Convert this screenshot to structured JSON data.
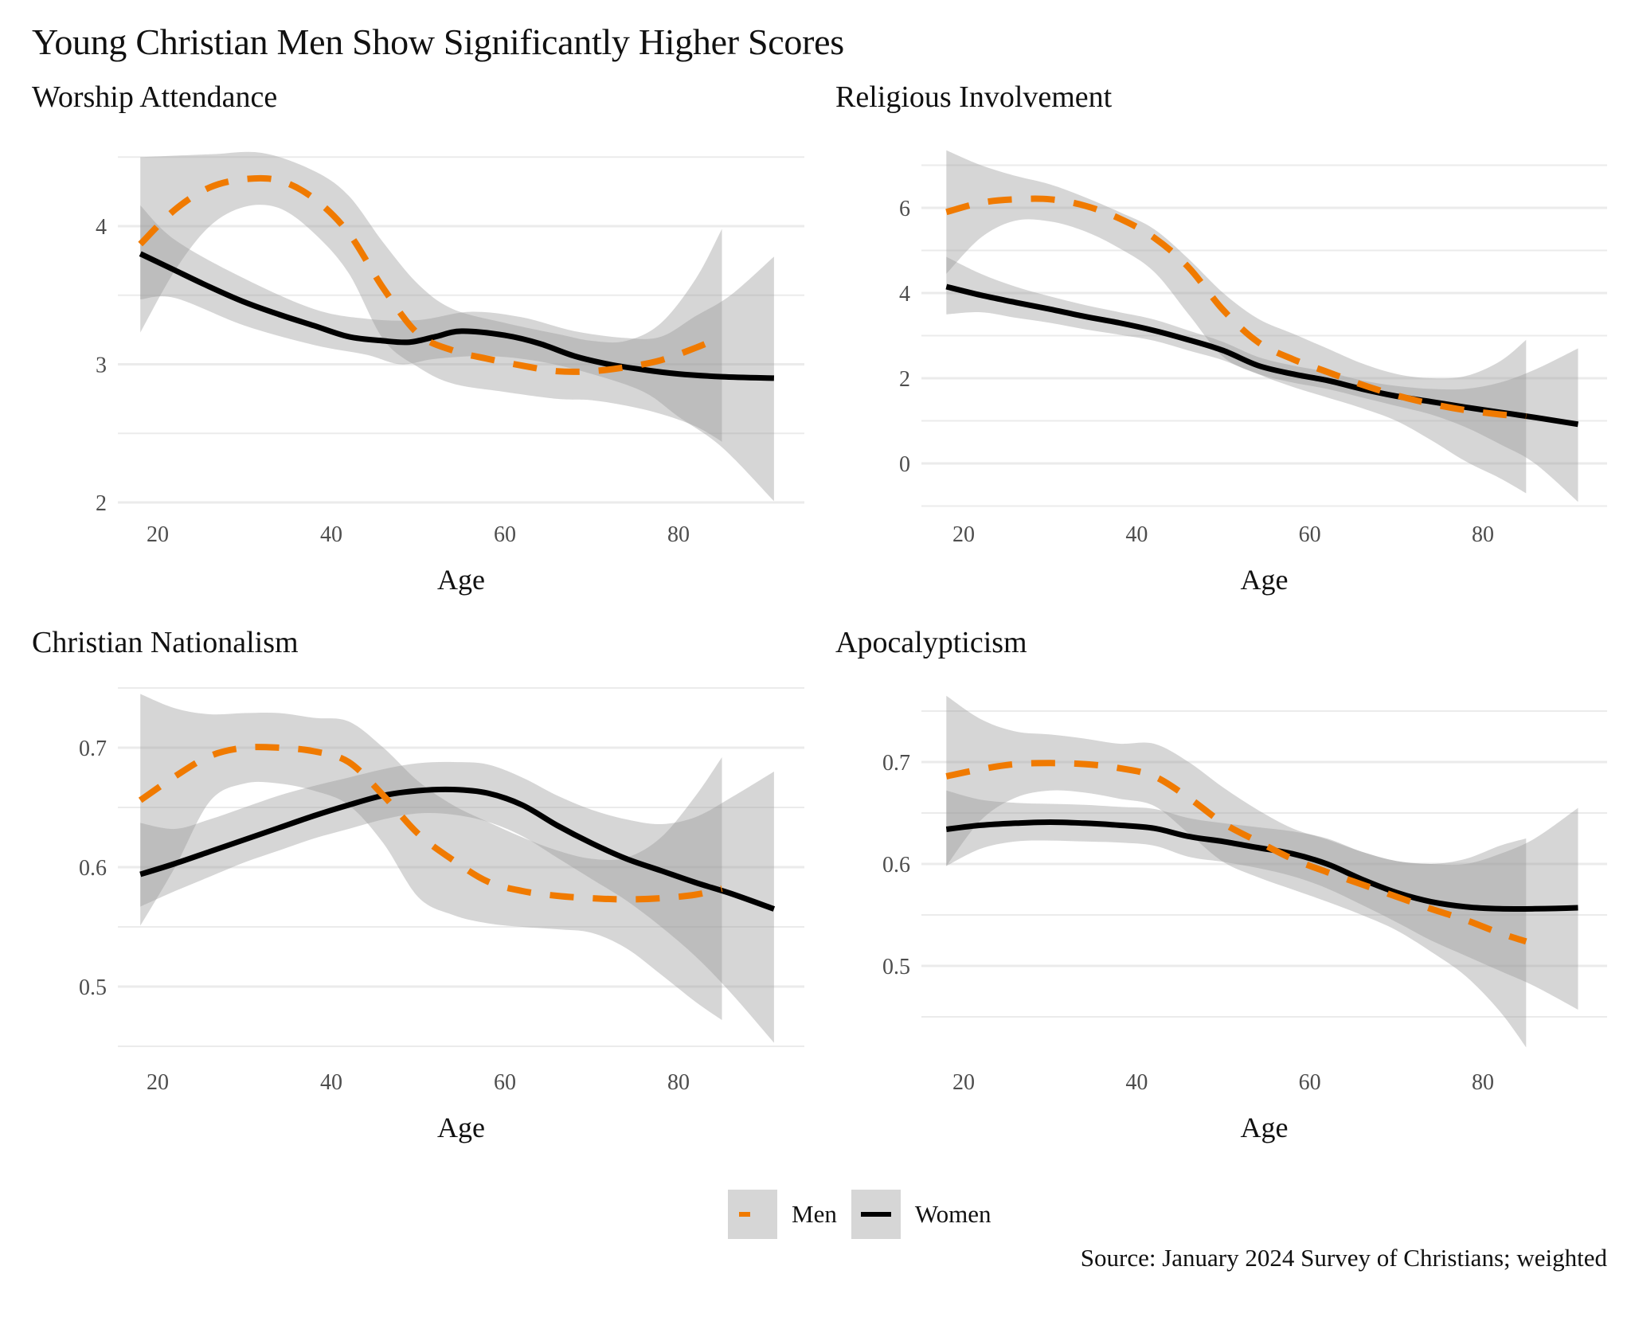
{
  "title": "Young Christian Men Show Significantly Higher Scores",
  "caption": "Source: January 2024 Survey of Christians; weighted",
  "legend": {
    "items": [
      {
        "label": "Men",
        "color": "#f07a00",
        "linetype": "dashed"
      },
      {
        "label": "Women",
        "color": "#000000",
        "linetype": "solid"
      }
    ],
    "position": "bottom"
  },
  "colors": {
    "men": "#f07a00",
    "women": "#000000",
    "ribbon": "#bfbfbf",
    "grid": "#ebebeb"
  },
  "chart_data": [
    {
      "type": "line",
      "title": "Worship Attendance",
      "xlabel": "Age",
      "ylabel": "",
      "xlim": [
        17,
        93
      ],
      "ylim": [
        1.92,
        4.62
      ],
      "xticks": [
        20,
        40,
        60,
        80
      ],
      "yticks": [
        2,
        3,
        4
      ],
      "minor_gridlines": [
        2.5,
        3.5,
        4.5
      ],
      "grid": true,
      "series": [
        {
          "name": "Men",
          "x": [
            18,
            22,
            26,
            30,
            34,
            38,
            42,
            46,
            50,
            54,
            58,
            62,
            66,
            70,
            74,
            78,
            82,
            85
          ],
          "y": [
            3.87,
            4.12,
            4.28,
            4.34,
            4.33,
            4.2,
            3.95,
            3.55,
            3.22,
            3.1,
            3.04,
            2.99,
            2.95,
            2.95,
            2.98,
            3.03,
            3.12,
            3.2
          ],
          "ci_x": [
            18,
            26,
            32,
            38,
            42,
            46,
            50,
            54,
            60,
            66,
            70,
            74,
            78,
            82,
            85
          ],
          "ci_upper": [
            4.5,
            4.52,
            4.53,
            4.4,
            4.22,
            3.88,
            3.58,
            3.4,
            3.3,
            3.22,
            3.17,
            3.17,
            3.3,
            3.62,
            3.98
          ],
          "ci_lower_x": [
            18,
            22,
            26,
            30,
            34,
            38,
            42,
            46,
            50,
            54,
            60,
            66,
            70,
            74,
            78,
            82,
            85
          ],
          "ci_lower": [
            3.23,
            3.68,
            4.0,
            4.14,
            4.13,
            3.95,
            3.66,
            3.18,
            2.98,
            2.86,
            2.8,
            2.75,
            2.74,
            2.7,
            2.64,
            2.55,
            2.44
          ]
        },
        {
          "name": "Women",
          "x": [
            18,
            22,
            26,
            30,
            34,
            38,
            42,
            46,
            49,
            52,
            55,
            60,
            64,
            68,
            72,
            76,
            80,
            85,
            91
          ],
          "y": [
            3.8,
            3.68,
            3.56,
            3.45,
            3.36,
            3.28,
            3.2,
            3.17,
            3.16,
            3.2,
            3.24,
            3.21,
            3.15,
            3.06,
            3.0,
            2.96,
            2.93,
            2.91,
            2.9
          ],
          "ci_x": [
            18,
            22,
            30,
            38,
            44,
            50,
            56,
            62,
            68,
            74,
            78,
            82,
            86,
            91
          ],
          "ci_upper": [
            4.15,
            3.9,
            3.62,
            3.4,
            3.33,
            3.32,
            3.38,
            3.34,
            3.24,
            3.19,
            3.2,
            3.35,
            3.5,
            3.78
          ],
          "ci_lower_x": [
            18,
            22,
            30,
            38,
            44,
            48,
            52,
            58,
            64,
            70,
            76,
            80,
            85,
            91
          ],
          "ci_lower": [
            3.47,
            3.48,
            3.28,
            3.14,
            3.07,
            3.0,
            3.04,
            3.06,
            3.02,
            2.93,
            2.8,
            2.62,
            2.4,
            2.01
          ]
        }
      ]
    },
    {
      "type": "line",
      "title": "Religious Involvement",
      "xlabel": "Age",
      "ylabel": "",
      "xlim": [
        17,
        93
      ],
      "ylim": [
        -1.1,
        7.4
      ],
      "xticks": [
        20,
        40,
        60,
        80
      ],
      "yticks": [
        0,
        2,
        4,
        6
      ],
      "minor_gridlines": [
        -1,
        1,
        3,
        5,
        7
      ],
      "grid": true,
      "series": [
        {
          "name": "Men",
          "x": [
            18,
            22,
            26,
            30,
            34,
            38,
            42,
            46,
            50,
            54,
            58,
            62,
            66,
            70,
            74,
            78,
            82,
            85
          ],
          "y": [
            5.9,
            6.12,
            6.2,
            6.2,
            6.05,
            5.75,
            5.3,
            4.6,
            3.6,
            2.85,
            2.45,
            2.15,
            1.85,
            1.6,
            1.4,
            1.25,
            1.15,
            1.1
          ],
          "ci_x": [
            18,
            22,
            26,
            30,
            34,
            38,
            42,
            46,
            50,
            54,
            58,
            62,
            66,
            70,
            74,
            78,
            82,
            85
          ],
          "ci_upper": [
            7.35,
            7.0,
            6.75,
            6.55,
            6.25,
            5.9,
            5.5,
            4.8,
            4.0,
            3.4,
            3.05,
            2.7,
            2.35,
            2.1,
            2.0,
            2.05,
            2.4,
            2.9
          ],
          "ci_lower_x": [
            18,
            22,
            26,
            30,
            34,
            38,
            42,
            46,
            50,
            54,
            58,
            62,
            66,
            70,
            74,
            78,
            82,
            85
          ],
          "ci_lower": [
            4.45,
            5.3,
            5.7,
            5.68,
            5.45,
            5.05,
            4.5,
            3.5,
            2.5,
            2.1,
            1.8,
            1.55,
            1.3,
            1.0,
            0.55,
            0.05,
            -0.35,
            -0.7
          ]
        },
        {
          "name": "Women",
          "x": [
            18,
            22,
            26,
            30,
            34,
            38,
            42,
            46,
            50,
            54,
            58,
            62,
            66,
            70,
            74,
            78,
            82,
            86,
            91
          ],
          "y": [
            4.15,
            3.95,
            3.78,
            3.62,
            3.45,
            3.3,
            3.12,
            2.9,
            2.65,
            2.3,
            2.1,
            1.95,
            1.75,
            1.58,
            1.45,
            1.32,
            1.2,
            1.08,
            0.92
          ],
          "ci_x": [
            18,
            22,
            26,
            30,
            34,
            38,
            42,
            46,
            50,
            54,
            58,
            62,
            66,
            70,
            74,
            78,
            82,
            86,
            91
          ],
          "ci_upper": [
            4.85,
            4.45,
            4.15,
            3.92,
            3.72,
            3.55,
            3.38,
            3.12,
            2.85,
            2.5,
            2.3,
            2.15,
            1.95,
            1.82,
            1.75,
            1.75,
            1.9,
            2.2,
            2.7
          ],
          "ci_lower_x": [
            18,
            22,
            26,
            30,
            34,
            38,
            42,
            46,
            50,
            54,
            58,
            62,
            66,
            70,
            74,
            78,
            82,
            86,
            91
          ],
          "ci_lower": [
            3.5,
            3.55,
            3.42,
            3.3,
            3.15,
            3.02,
            2.88,
            2.65,
            2.42,
            2.1,
            1.9,
            1.75,
            1.55,
            1.35,
            1.15,
            0.85,
            0.45,
            0.0,
            -0.9
          ]
        }
      ]
    },
    {
      "type": "line",
      "title": "Christian Nationalism",
      "xlabel": "Age",
      "ylabel": "",
      "xlim": [
        17,
        93
      ],
      "ylim": [
        0.44,
        0.76
      ],
      "xticks": [
        20,
        40,
        60,
        80
      ],
      "yticks": [
        0.5,
        0.6,
        0.7
      ],
      "minor_gridlines": [
        0.45,
        0.55,
        0.65,
        0.75
      ],
      "grid": true,
      "series": [
        {
          "name": "Men",
          "x": [
            18,
            22,
            26,
            30,
            34,
            38,
            42,
            46,
            50,
            54,
            58,
            62,
            66,
            70,
            74,
            78,
            82,
            85
          ],
          "y": [
            0.656,
            0.676,
            0.693,
            0.7,
            0.7,
            0.697,
            0.688,
            0.66,
            0.628,
            0.606,
            0.588,
            0.58,
            0.576,
            0.574,
            0.573,
            0.574,
            0.577,
            0.582
          ],
          "ci_x": [
            18,
            22,
            26,
            30,
            34,
            38,
            42,
            46,
            50,
            54,
            58,
            62,
            66,
            70,
            74,
            78,
            82,
            85
          ],
          "ci_upper": [
            0.745,
            0.733,
            0.728,
            0.729,
            0.729,
            0.725,
            0.722,
            0.7,
            0.672,
            0.652,
            0.638,
            0.625,
            0.614,
            0.607,
            0.608,
            0.625,
            0.66,
            0.692
          ],
          "ci_lower_x": [
            18,
            22,
            26,
            30,
            34,
            38,
            42,
            46,
            50,
            54,
            58,
            62,
            66,
            70,
            74,
            78,
            82,
            85
          ],
          "ci_lower": [
            0.551,
            0.6,
            0.655,
            0.67,
            0.67,
            0.664,
            0.652,
            0.62,
            0.575,
            0.56,
            0.553,
            0.55,
            0.548,
            0.545,
            0.532,
            0.51,
            0.487,
            0.472
          ]
        },
        {
          "name": "Women",
          "x": [
            18,
            22,
            26,
            30,
            34,
            38,
            42,
            46,
            50,
            54,
            58,
            62,
            66,
            70,
            74,
            78,
            82,
            86,
            91
          ],
          "y": [
            0.594,
            0.603,
            0.613,
            0.623,
            0.633,
            0.643,
            0.652,
            0.66,
            0.664,
            0.665,
            0.662,
            0.652,
            0.635,
            0.62,
            0.607,
            0.597,
            0.587,
            0.578,
            0.565
          ],
          "ci_x": [
            18,
            22,
            26,
            30,
            34,
            38,
            42,
            46,
            50,
            54,
            58,
            62,
            66,
            70,
            74,
            78,
            82,
            86,
            91
          ],
          "ci_upper": [
            0.637,
            0.632,
            0.64,
            0.65,
            0.66,
            0.668,
            0.675,
            0.682,
            0.687,
            0.688,
            0.686,
            0.675,
            0.66,
            0.648,
            0.64,
            0.636,
            0.642,
            0.658,
            0.68
          ],
          "ci_lower_x": [
            18,
            22,
            26,
            30,
            34,
            38,
            42,
            46,
            50,
            54,
            58,
            62,
            66,
            70,
            74,
            78,
            82,
            86,
            91
          ],
          "ci_lower": [
            0.567,
            0.58,
            0.592,
            0.604,
            0.614,
            0.624,
            0.632,
            0.64,
            0.645,
            0.644,
            0.638,
            0.626,
            0.608,
            0.59,
            0.572,
            0.55,
            0.525,
            0.495,
            0.453
          ]
        }
      ]
    },
    {
      "type": "line",
      "title": "Apocalypticism",
      "xlabel": "Age",
      "ylabel": "",
      "xlim": [
        17,
        93
      ],
      "ylim": [
        0.42,
        0.77
      ],
      "xticks": [
        20,
        40,
        60,
        80
      ],
      "yticks": [
        0.5,
        0.6,
        0.7
      ],
      "minor_gridlines": [
        0.45,
        0.55,
        0.65,
        0.75
      ],
      "grid": true,
      "series": [
        {
          "name": "Men",
          "x": [
            18,
            22,
            26,
            30,
            34,
            38,
            42,
            46,
            50,
            54,
            58,
            62,
            66,
            70,
            74,
            78,
            82,
            85
          ],
          "y": [
            0.686,
            0.693,
            0.698,
            0.699,
            0.698,
            0.694,
            0.686,
            0.665,
            0.64,
            0.622,
            0.605,
            0.592,
            0.58,
            0.568,
            0.556,
            0.545,
            0.532,
            0.524
          ],
          "ci_x": [
            18,
            22,
            26,
            30,
            34,
            38,
            42,
            46,
            50,
            54,
            58,
            62,
            66,
            70,
            74,
            78,
            82,
            85
          ],
          "ci_upper": [
            0.765,
            0.742,
            0.73,
            0.727,
            0.723,
            0.718,
            0.718,
            0.7,
            0.675,
            0.653,
            0.635,
            0.624,
            0.612,
            0.603,
            0.6,
            0.605,
            0.618,
            0.625
          ],
          "ci_lower_x": [
            18,
            22,
            26,
            30,
            34,
            38,
            42,
            46,
            50,
            54,
            58,
            62,
            66,
            70,
            74,
            78,
            82,
            85
          ],
          "ci_lower": [
            0.598,
            0.643,
            0.665,
            0.672,
            0.67,
            0.664,
            0.657,
            0.63,
            0.602,
            0.587,
            0.575,
            0.563,
            0.55,
            0.535,
            0.514,
            0.49,
            0.455,
            0.42
          ]
        },
        {
          "name": "Women",
          "x": [
            18,
            22,
            26,
            30,
            34,
            38,
            42,
            46,
            50,
            54,
            58,
            62,
            66,
            70,
            74,
            78,
            82,
            86,
            91
          ],
          "y": [
            0.634,
            0.638,
            0.64,
            0.641,
            0.64,
            0.638,
            0.635,
            0.627,
            0.622,
            0.616,
            0.61,
            0.6,
            0.585,
            0.572,
            0.563,
            0.558,
            0.556,
            0.556,
            0.557
          ],
          "ci_x": [
            18,
            22,
            26,
            30,
            34,
            38,
            42,
            46,
            50,
            54,
            58,
            62,
            66,
            70,
            74,
            78,
            82,
            86,
            91
          ],
          "ci_upper": [
            0.672,
            0.663,
            0.66,
            0.659,
            0.658,
            0.656,
            0.654,
            0.645,
            0.64,
            0.636,
            0.632,
            0.625,
            0.612,
            0.603,
            0.6,
            0.6,
            0.61,
            0.625,
            0.655
          ],
          "ci_lower_x": [
            18,
            22,
            26,
            30,
            34,
            38,
            42,
            46,
            50,
            54,
            58,
            62,
            66,
            70,
            74,
            78,
            82,
            86,
            91
          ],
          "ci_lower": [
            0.598,
            0.615,
            0.622,
            0.623,
            0.622,
            0.621,
            0.618,
            0.607,
            0.602,
            0.596,
            0.588,
            0.576,
            0.56,
            0.543,
            0.525,
            0.51,
            0.495,
            0.48,
            0.457
          ]
        }
      ]
    }
  ]
}
